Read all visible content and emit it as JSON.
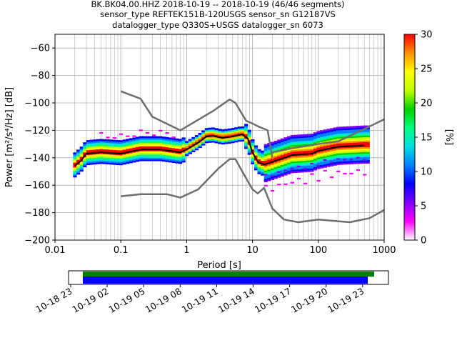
{
  "chart_data": {
    "type": "heatmap",
    "title_lines": [
      "BK.BK04.00.HHZ   2018-10-19 -- 2018-10-19  (46/46 segments)",
      "sensor_type REFTEK151B-120USGS sensor_sn G12187VS",
      "datalogger_type Q330S+USGS datalogger_sn 6073"
    ],
    "xlabel": "Period [s]",
    "ylabel": "Power [m²/s⁴/Hz] [dB]",
    "x_scale": "log",
    "xlim": [
      0.01,
      1000
    ],
    "ylim": [
      -200,
      -50
    ],
    "x_ticks": [
      "0.01",
      "0.1",
      "1",
      "10",
      "100",
      "1000"
    ],
    "y_ticks": [
      "−200",
      "−180",
      "−160",
      "−140",
      "−120",
      "−100",
      "−80",
      "−60"
    ],
    "grid": true,
    "colorbar": {
      "label": "[%]",
      "range": [
        0,
        30
      ],
      "ticks": [
        "0",
        "5",
        "10",
        "15",
        "20",
        "25",
        "30"
      ],
      "colors": [
        "#ffffff",
        "#ff00ff",
        "#8000ff",
        "#0000ff",
        "#0080ff",
        "#00e0e0",
        "#00ff80",
        "#00d000",
        "#c0ff00",
        "#ffff00",
        "#ff9000",
        "#ff0000"
      ]
    },
    "series": [
      {
        "name": "",
        "x": [
          0.1,
          0.2,
          0.3,
          0.8,
          2.5,
          4.5,
          5.5,
          8,
          10,
          12,
          17,
          20
        ],
        "y": [
          -91.5,
          -97,
          -110,
          -120,
          -106,
          -97.5,
          -100,
          -113,
          -115,
          -117,
          -120,
          -140
        ]
      },
      {
        "name": "",
        "x": [
          20,
          40,
          100,
          200,
          500,
          1000
        ],
        "y": [
          -136,
          -133,
          -130,
          -128,
          -119,
          -112
        ]
      },
      {
        "name": "",
        "x": [
          0.1,
          0.2,
          0.5,
          0.8,
          1.5,
          3,
          4.5,
          5.5,
          7,
          10,
          12,
          15,
          20,
          30,
          50,
          100,
          300,
          600,
          1000
        ],
        "y": [
          -168,
          -166.5,
          -166.5,
          -169,
          -163,
          -148,
          -141,
          -141,
          -150,
          -163,
          -166,
          -162,
          -177,
          -185,
          -187,
          -185,
          -187,
          -184,
          -178
        ]
      },
      {
        "name": "",
        "x": [
          0.02,
          0.025,
          0.03,
          0.05,
          0.1,
          0.2,
          0.4,
          0.8,
          1,
          1.5,
          2,
          2.5,
          3.5,
          5,
          7,
          8.5,
          10,
          12,
          15,
          20,
          40,
          80,
          100,
          200,
          500
        ],
        "y": [
          -146,
          -142,
          -137,
          -136,
          -137,
          -134,
          -134,
          -136,
          -134,
          -129,
          -124.5,
          -124,
          -125.5,
          -124.5,
          -123,
          -126,
          -136,
          -143,
          -145,
          -143,
          -138,
          -137,
          -135,
          -132,
          -131
        ]
      }
    ],
    "time_bar": {
      "tick_labels": [
        "10-18 23",
        "10-19 02",
        "10-19 05",
        "10-19 08",
        "10-19 11",
        "10-19 14",
        "10-19 17",
        "10-19 20",
        "10-19 23"
      ],
      "colors": [
        "#008000",
        "#0000ff"
      ]
    }
  }
}
